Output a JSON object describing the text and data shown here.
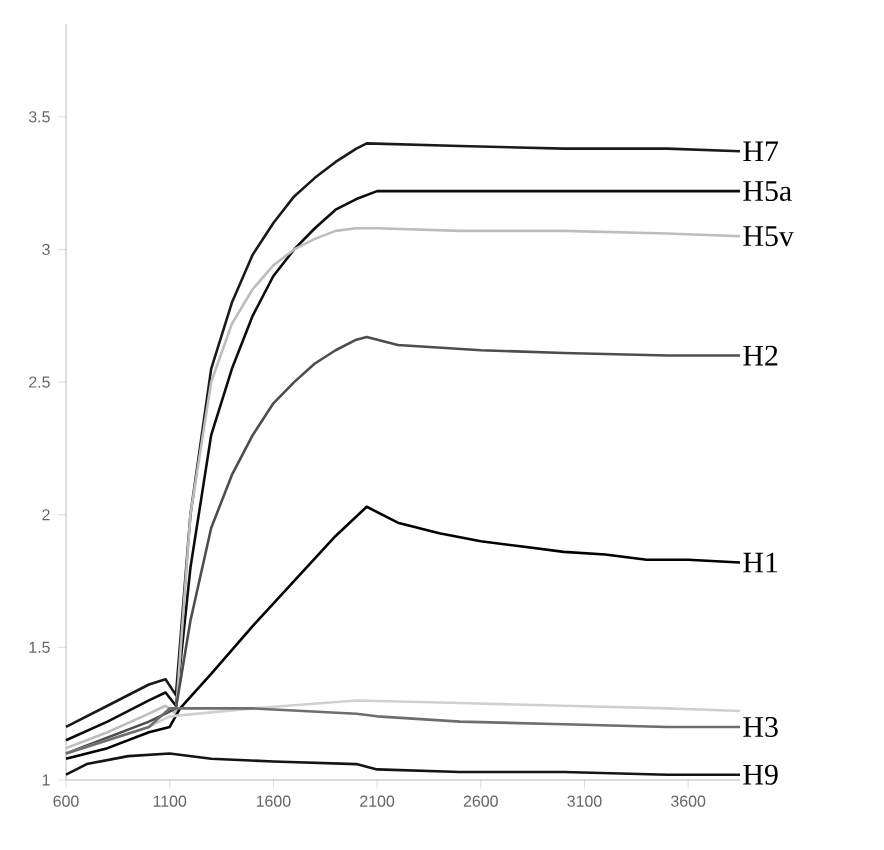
{
  "chart_data": {
    "type": "line",
    "xlim": [
      600,
      3850
    ],
    "ylim": [
      1,
      3.85
    ],
    "xticks": [
      600,
      1100,
      1600,
      2100,
      2600,
      3100,
      3600
    ],
    "yticks": [
      1,
      1.5,
      2,
      2.5,
      3,
      3.5
    ],
    "grid": false,
    "series": [
      {
        "name": "H7",
        "color": "#1a1a1a",
        "x": [
          600,
          800,
          1000,
          1080,
          1130,
          1200,
          1300,
          1400,
          1500,
          1600,
          1700,
          1800,
          1900,
          2000,
          2050,
          2500,
          3000,
          3500,
          3850
        ],
        "values": [
          1.2,
          1.28,
          1.36,
          1.38,
          1.32,
          2.0,
          2.55,
          2.8,
          2.98,
          3.1,
          3.2,
          3.27,
          3.33,
          3.38,
          3.4,
          3.39,
          3.38,
          3.38,
          3.37
        ]
      },
      {
        "name": "H5a",
        "color": "#0d0d0d",
        "x": [
          600,
          800,
          1000,
          1080,
          1130,
          1200,
          1300,
          1400,
          1500,
          1600,
          1700,
          1800,
          1900,
          2000,
          2100,
          2500,
          3000,
          3500,
          3850
        ],
        "values": [
          1.15,
          1.22,
          1.3,
          1.33,
          1.28,
          1.8,
          2.3,
          2.55,
          2.75,
          2.9,
          3.0,
          3.08,
          3.15,
          3.19,
          3.22,
          3.22,
          3.22,
          3.22,
          3.22
        ]
      },
      {
        "name": "H5v",
        "color": "#bdbdbd",
        "x": [
          600,
          800,
          1000,
          1080,
          1130,
          1200,
          1300,
          1400,
          1500,
          1600,
          1700,
          1800,
          1900,
          2000,
          2100,
          2500,
          3000,
          3500,
          3850
        ],
        "values": [
          1.12,
          1.18,
          1.25,
          1.28,
          1.25,
          2.0,
          2.5,
          2.72,
          2.85,
          2.94,
          3.0,
          3.04,
          3.07,
          3.08,
          3.08,
          3.07,
          3.07,
          3.06,
          3.05
        ]
      },
      {
        "name": "H2",
        "color": "#4d4d4d",
        "x": [
          600,
          800,
          1000,
          1080,
          1130,
          1200,
          1300,
          1400,
          1500,
          1600,
          1700,
          1800,
          1900,
          2000,
          2050,
          2200,
          2600,
          3000,
          3500,
          3850
        ],
        "values": [
          1.1,
          1.16,
          1.22,
          1.25,
          1.27,
          1.6,
          1.95,
          2.15,
          2.3,
          2.42,
          2.5,
          2.57,
          2.62,
          2.66,
          2.67,
          2.64,
          2.62,
          2.61,
          2.6,
          2.6
        ]
      },
      {
        "name": "H1",
        "color": "#000000",
        "x": [
          600,
          800,
          1000,
          1100,
          1150,
          1300,
          1500,
          1700,
          1900,
          2050,
          2200,
          2400,
          2600,
          2800,
          3000,
          3200,
          3400,
          3600,
          3850
        ],
        "values": [
          1.08,
          1.12,
          1.18,
          1.2,
          1.27,
          1.4,
          1.58,
          1.75,
          1.92,
          2.03,
          1.97,
          1.93,
          1.9,
          1.88,
          1.86,
          1.85,
          1.83,
          1.83,
          1.82
        ]
      },
      {
        "color": "#d0d0d0",
        "x": [
          600,
          800,
          1000,
          1100,
          1500,
          2000,
          2500,
          3000,
          3500,
          3850
        ],
        "values": [
          1.1,
          1.15,
          1.2,
          1.24,
          1.27,
          1.3,
          1.29,
          1.28,
          1.27,
          1.26
        ]
      },
      {
        "name": "H3",
        "color": "#6e6e6e",
        "x": [
          600,
          800,
          1000,
          1100,
          1500,
          2000,
          2100,
          2500,
          3000,
          3500,
          3850
        ],
        "values": [
          1.1,
          1.15,
          1.2,
          1.27,
          1.27,
          1.25,
          1.24,
          1.22,
          1.21,
          1.2,
          1.2
        ]
      },
      {
        "name": "H9",
        "color": "#141414",
        "x": [
          600,
          700,
          900,
          1100,
          1300,
          1600,
          2000,
          2100,
          2500,
          3000,
          3500,
          3850
        ],
        "values": [
          1.02,
          1.06,
          1.09,
          1.1,
          1.08,
          1.07,
          1.06,
          1.04,
          1.03,
          1.03,
          1.02,
          1.02
        ]
      }
    ]
  }
}
